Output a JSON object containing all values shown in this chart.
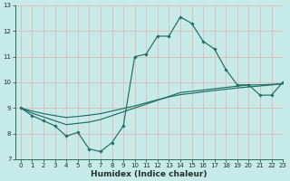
{
  "title": "",
  "xlabel": "Humidex (Indice chaleur)",
  "background_color": "#c5eae8",
  "grid_color": "#e0b8b8",
  "line_color": "#1e6e62",
  "x_hours": [
    0,
    1,
    2,
    3,
    4,
    5,
    6,
    7,
    8,
    9,
    10,
    11,
    12,
    13,
    14,
    15,
    16,
    17,
    18,
    19,
    20,
    21,
    22,
    23
  ],
  "line1_y": [
    9.0,
    8.7,
    8.5,
    8.3,
    7.9,
    8.05,
    7.4,
    7.3,
    7.65,
    8.3,
    11.0,
    11.1,
    11.8,
    11.8,
    12.55,
    12.3,
    11.6,
    11.3,
    10.5,
    9.9,
    9.9,
    9.5,
    9.5,
    10.0
  ],
  "line2_y": [
    9.0,
    8.8,
    8.65,
    8.5,
    8.35,
    8.4,
    8.45,
    8.55,
    8.7,
    8.85,
    9.0,
    9.15,
    9.3,
    9.45,
    9.6,
    9.65,
    9.7,
    9.75,
    9.8,
    9.85,
    9.9,
    9.9,
    9.92,
    9.95
  ],
  "line3_y": [
    9.0,
    8.88,
    8.78,
    8.7,
    8.63,
    8.67,
    8.72,
    8.78,
    8.88,
    8.98,
    9.08,
    9.2,
    9.32,
    9.43,
    9.52,
    9.57,
    9.63,
    9.68,
    9.73,
    9.78,
    9.82,
    9.86,
    9.9,
    9.94
  ],
  "ylim": [
    7,
    13
  ],
  "xlim": [
    -0.5,
    23
  ],
  "yticks": [
    7,
    8,
    9,
    10,
    11,
    12,
    13
  ],
  "xticks": [
    0,
    1,
    2,
    3,
    4,
    5,
    6,
    7,
    8,
    9,
    10,
    11,
    12,
    13,
    14,
    15,
    16,
    17,
    18,
    19,
    20,
    21,
    22,
    23
  ],
  "xlabel_fontsize": 6.5,
  "tick_fontsize": 5.0
}
